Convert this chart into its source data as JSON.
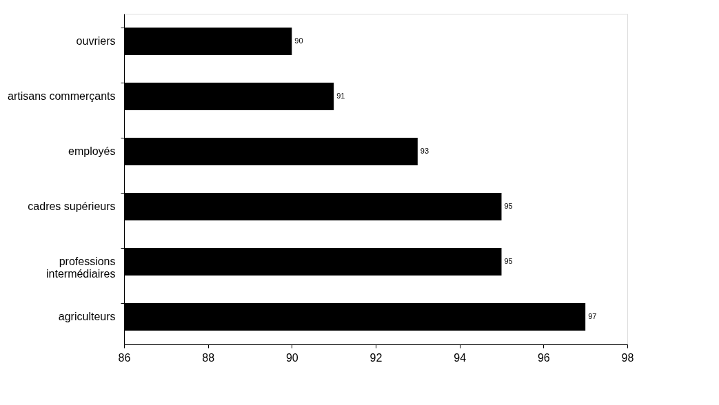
{
  "chart_data": {
    "type": "bar",
    "orientation": "horizontal",
    "categories": [
      "ouvriers",
      "artisans commerçants",
      "employés",
      "cadres supérieurs",
      "professions intermédiaires",
      "agriculteurs"
    ],
    "values": [
      90,
      91,
      93,
      95,
      95,
      97
    ],
    "color": "#000000",
    "xlim": [
      86,
      98
    ],
    "xticks": [
      86,
      88,
      90,
      92,
      94,
      96,
      98
    ],
    "data_labels": true,
    "grid": false
  }
}
